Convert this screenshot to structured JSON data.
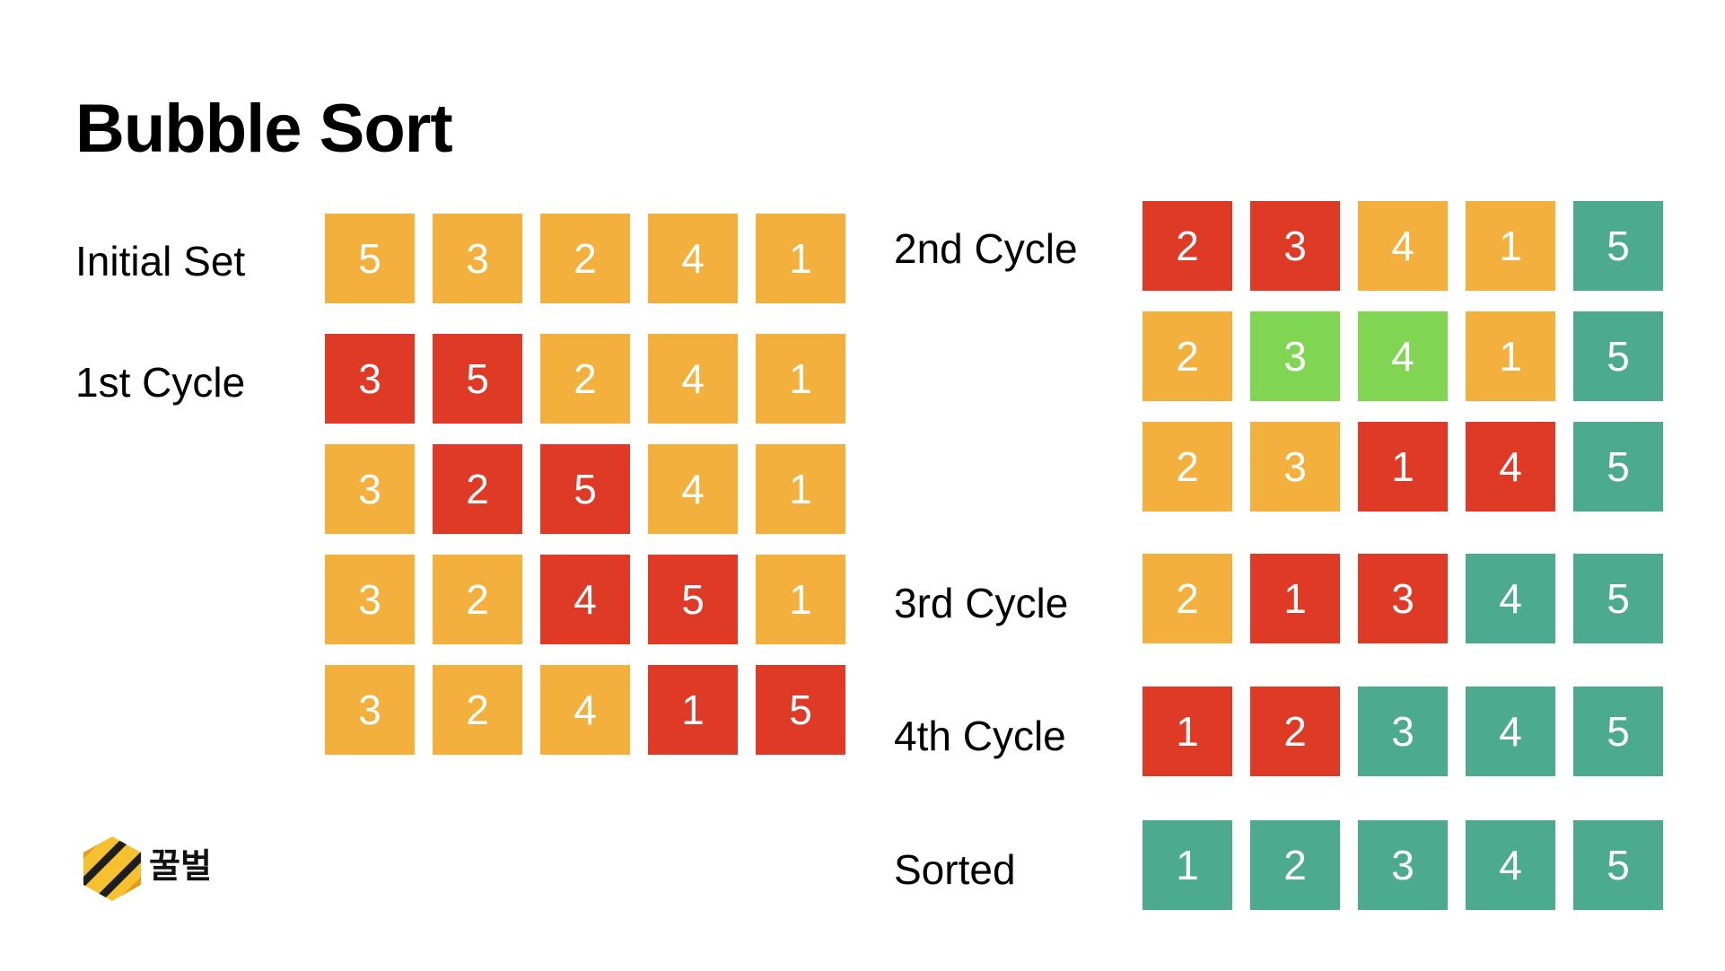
{
  "title": "Bubble Sort",
  "colors": {
    "unsorted": "#F3B03D",
    "comparing": "#DE3A25",
    "sorted": "#4CAA8F",
    "no_swap": "#80D653"
  },
  "left_column": [
    {
      "label": "Initial Set",
      "rows": [
        {
          "values": [
            5,
            3,
            2,
            4,
            1
          ],
          "states": [
            "unsorted",
            "unsorted",
            "unsorted",
            "unsorted",
            "unsorted"
          ]
        }
      ]
    },
    {
      "label": "1st Cycle",
      "rows": [
        {
          "values": [
            3,
            5,
            2,
            4,
            1
          ],
          "states": [
            "comparing",
            "comparing",
            "unsorted",
            "unsorted",
            "unsorted"
          ]
        },
        {
          "values": [
            3,
            2,
            5,
            4,
            1
          ],
          "states": [
            "unsorted",
            "comparing",
            "comparing",
            "unsorted",
            "unsorted"
          ]
        },
        {
          "values": [
            3,
            2,
            4,
            5,
            1
          ],
          "states": [
            "unsorted",
            "unsorted",
            "comparing",
            "comparing",
            "unsorted"
          ]
        },
        {
          "values": [
            3,
            2,
            4,
            1,
            5
          ],
          "states": [
            "unsorted",
            "unsorted",
            "unsorted",
            "comparing",
            "comparing"
          ]
        }
      ]
    }
  ],
  "right_column": [
    {
      "label": "2nd Cycle",
      "rows": [
        {
          "values": [
            2,
            3,
            4,
            1,
            5
          ],
          "states": [
            "comparing",
            "comparing",
            "unsorted",
            "unsorted",
            "sorted"
          ]
        },
        {
          "values": [
            2,
            3,
            4,
            1,
            5
          ],
          "states": [
            "unsorted",
            "no_swap",
            "no_swap",
            "unsorted",
            "sorted"
          ]
        },
        {
          "values": [
            2,
            3,
            1,
            4,
            5
          ],
          "states": [
            "unsorted",
            "unsorted",
            "comparing",
            "comparing",
            "sorted"
          ]
        }
      ]
    },
    {
      "label": "3rd Cycle",
      "rows": [
        {
          "values": [
            2,
            1,
            3,
            4,
            5
          ],
          "states": [
            "unsorted",
            "comparing",
            "comparing",
            "sorted",
            "sorted"
          ]
        }
      ]
    },
    {
      "label": "4th Cycle",
      "rows": [
        {
          "values": [
            1,
            2,
            3,
            4,
            5
          ],
          "states": [
            "comparing",
            "comparing",
            "sorted",
            "sorted",
            "sorted"
          ]
        }
      ]
    },
    {
      "label": "Sorted",
      "rows": [
        {
          "values": [
            1,
            2,
            3,
            4,
            5
          ],
          "states": [
            "sorted",
            "sorted",
            "sorted",
            "sorted",
            "sorted"
          ]
        }
      ]
    }
  ],
  "logo": {
    "text": "꿀벌",
    "icon": "honeybee-hexagon-icon"
  }
}
